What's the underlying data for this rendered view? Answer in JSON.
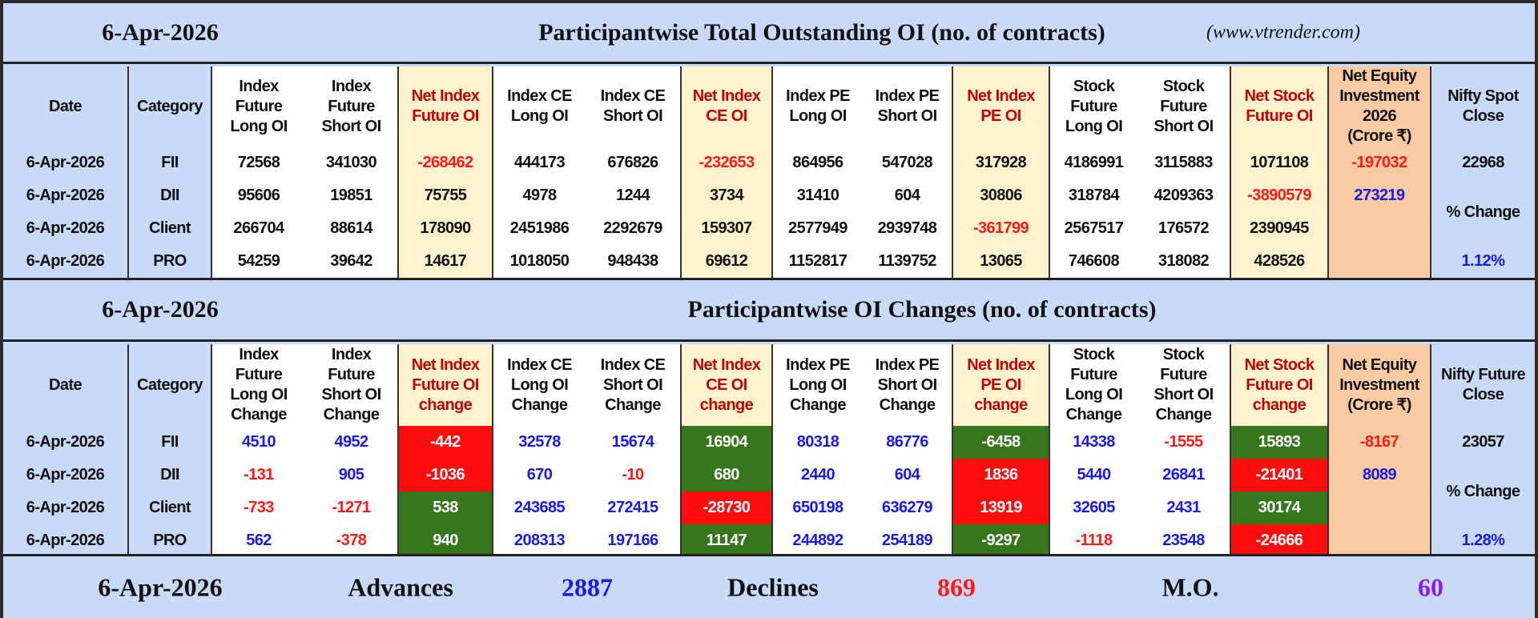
{
  "colors": {
    "header_blue": "#c9daf8",
    "net_yellow": "#fff2cc",
    "equity_orange": "#f8cba2",
    "positive_green": "#38761d",
    "negative_red": "#ff0d0d",
    "blue_text": "#1a1ae6",
    "red_text": "#ff1a1a",
    "mo_purple": "#8a1aff"
  },
  "outstanding": {
    "date": "6-Apr-2026",
    "title": "Participantwise Total Outstanding OI (no. of contracts)",
    "site": "(www.vtrender.com)",
    "headers": [
      "Date",
      "Category",
      "Index\nFuture\nLong OI",
      "Index\nFuture\nShort OI",
      "Net Index\nFuture OI",
      "Index CE\nLong OI",
      "Index CE\nShort OI",
      "Net Index\nCE OI",
      "Index PE\nLong OI",
      "Index PE\nShort OI",
      "Net Index\nPE OI",
      "Stock\nFuture\nLong OI",
      "Stock\nFuture\nShort OI",
      "Net Stock\nFuture OI",
      "Net Equity\nInvestment\n2026\n(Crore ₹)",
      "Nifty Spot\nClose"
    ],
    "rows": [
      {
        "cells": [
          "6-Apr-2026",
          "FII",
          "72568",
          "341030",
          "-268462",
          "444173",
          "676826",
          "-232653",
          "864956",
          "547028",
          "317928",
          "4186991",
          "3115883",
          "1071108"
        ],
        "styles": [
          "black",
          "black",
          "black",
          "black",
          "red",
          "black",
          "black",
          "red",
          "black",
          "black",
          "black",
          "black",
          "black",
          "black"
        ]
      },
      {
        "cells": [
          "6-Apr-2026",
          "DII",
          "95606",
          "19851",
          "75755",
          "4978",
          "1244",
          "3734",
          "31410",
          "604",
          "30806",
          "318784",
          "4209363",
          "-3890579"
        ],
        "styles": [
          "black",
          "black",
          "black",
          "black",
          "black",
          "black",
          "black",
          "black",
          "black",
          "black",
          "black",
          "black",
          "black",
          "red"
        ]
      },
      {
        "cells": [
          "6-Apr-2026",
          "Client",
          "266704",
          "88614",
          "178090",
          "2451986",
          "2292679",
          "159307",
          "2577949",
          "2939748",
          "-361799",
          "2567517",
          "176572",
          "2390945"
        ],
        "styles": [
          "black",
          "black",
          "black",
          "black",
          "black",
          "black",
          "black",
          "black",
          "black",
          "black",
          "red",
          "black",
          "black",
          "black"
        ]
      },
      {
        "cells": [
          "6-Apr-2026",
          "PRO",
          "54259",
          "39642",
          "14617",
          "1018050",
          "948438",
          "69612",
          "1152817",
          "1139752",
          "13065",
          "746608",
          "318082",
          "428526"
        ],
        "styles": [
          "black",
          "black",
          "black",
          "black",
          "black",
          "black",
          "black",
          "black",
          "black",
          "black",
          "black",
          "black",
          "black",
          "black"
        ]
      }
    ],
    "equity": [
      {
        "value": "-197032",
        "style": "red"
      },
      {
        "value": "273219",
        "style": "blue"
      }
    ],
    "nifty_close": "22968",
    "pct_label": "% Change",
    "pct": "1.12%"
  },
  "changes": {
    "date": "6-Apr-2026",
    "title": "Participantwise OI Changes (no. of contracts)",
    "headers": [
      "Date",
      "Category",
      "Index\nFuture\nLong OI\nChange",
      "Index\nFuture\nShort OI\nChange",
      "Net Index\nFuture OI\nchange",
      "Index CE\nLong OI\nChange",
      "Index CE\nShort OI\nChange",
      "Net Index\nCE OI\nchange",
      "Index PE\nLong OI\nChange",
      "Index PE\nShort OI\nChange",
      "Net Index\nPE OI\nchange",
      "Stock\nFuture\nLong OI\nChange",
      "Stock\nFuture\nShort OI\nChange",
      "Net Stock\nFuture OI\nchange",
      "Net Equity\nInvestment\n(Crore ₹)",
      "Nifty Future\nClose"
    ],
    "rows": [
      {
        "cells": [
          "6-Apr-2026",
          "FII",
          "4510",
          "4952",
          "-442",
          "32578",
          "15674",
          "16904",
          "80318",
          "86776",
          "-6458",
          "14338",
          "-1555",
          "15893"
        ],
        "styles": [
          "black",
          "black",
          "blue",
          "blue",
          "r",
          "blue",
          "blue",
          "g",
          "blue",
          "blue",
          "g",
          "blue",
          "red",
          "g"
        ]
      },
      {
        "cells": [
          "6-Apr-2026",
          "DII",
          "-131",
          "905",
          "-1036",
          "670",
          "-10",
          "680",
          "2440",
          "604",
          "1836",
          "5440",
          "26841",
          "-21401"
        ],
        "styles": [
          "black",
          "black",
          "red",
          "blue",
          "r",
          "blue",
          "red",
          "g",
          "blue",
          "blue",
          "r",
          "blue",
          "blue",
          "r"
        ]
      },
      {
        "cells": [
          "6-Apr-2026",
          "Client",
          "-733",
          "-1271",
          "538",
          "243685",
          "272415",
          "-28730",
          "650198",
          "636279",
          "13919",
          "32605",
          "2431",
          "30174"
        ],
        "styles": [
          "black",
          "black",
          "red",
          "red",
          "g",
          "blue",
          "blue",
          "r",
          "blue",
          "blue",
          "r",
          "blue",
          "blue",
          "g"
        ]
      },
      {
        "cells": [
          "6-Apr-2026",
          "PRO",
          "562",
          "-378",
          "940",
          "208313",
          "197166",
          "11147",
          "244892",
          "254189",
          "-9297",
          "-1118",
          "23548",
          "-24666"
        ],
        "styles": [
          "black",
          "black",
          "blue",
          "red",
          "g",
          "blue",
          "blue",
          "g",
          "blue",
          "blue",
          "g",
          "red",
          "blue",
          "r"
        ]
      }
    ],
    "equity": [
      {
        "value": "-8167",
        "style": "red"
      },
      {
        "value": "8089",
        "style": "blue"
      }
    ],
    "nifty_close": "23057",
    "pct_label": "% Change",
    "pct": "1.28%"
  },
  "breadth": {
    "date": "6-Apr-2026",
    "advances_label": "Advances",
    "advances": "2887",
    "declines_label": "Declines",
    "declines": "869",
    "mo_label": "M.O.",
    "mo": "60"
  }
}
